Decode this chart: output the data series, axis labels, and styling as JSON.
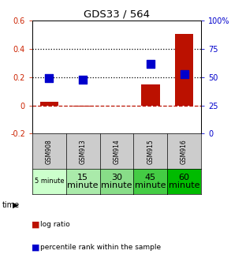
{
  "title": "GDS33 / 564",
  "samples": [
    "GSM908",
    "GSM913",
    "GSM914",
    "GSM915",
    "GSM916"
  ],
  "time_labels": [
    "5 minute",
    "15\nminute",
    "30\nminute",
    "45\nminute",
    "60\nminute"
  ],
  "time_colors": [
    "#ccffcc",
    "#aaeaaa",
    "#88dd88",
    "#44cc44",
    "#00bb00"
  ],
  "log_ratio": [
    0.025,
    -0.008,
    0.0,
    0.15,
    0.505
  ],
  "percentile_rank": [
    49.5,
    47.5,
    null,
    62.0,
    52.5
  ],
  "ylim_left": [
    -0.2,
    0.6
  ],
  "ylim_right": [
    0,
    100
  ],
  "yticks_left": [
    -0.2,
    0.0,
    0.2,
    0.4,
    0.6
  ],
  "yticks_right": [
    0,
    25,
    50,
    75,
    100
  ],
  "bar_color": "#bb1100",
  "dot_color": "#0000cc",
  "bar_width": 0.55,
  "dot_size": 45,
  "table_bg_sample": "#cccccc",
  "left_label_color": "#cc2200",
  "right_label_color": "#0000cc"
}
